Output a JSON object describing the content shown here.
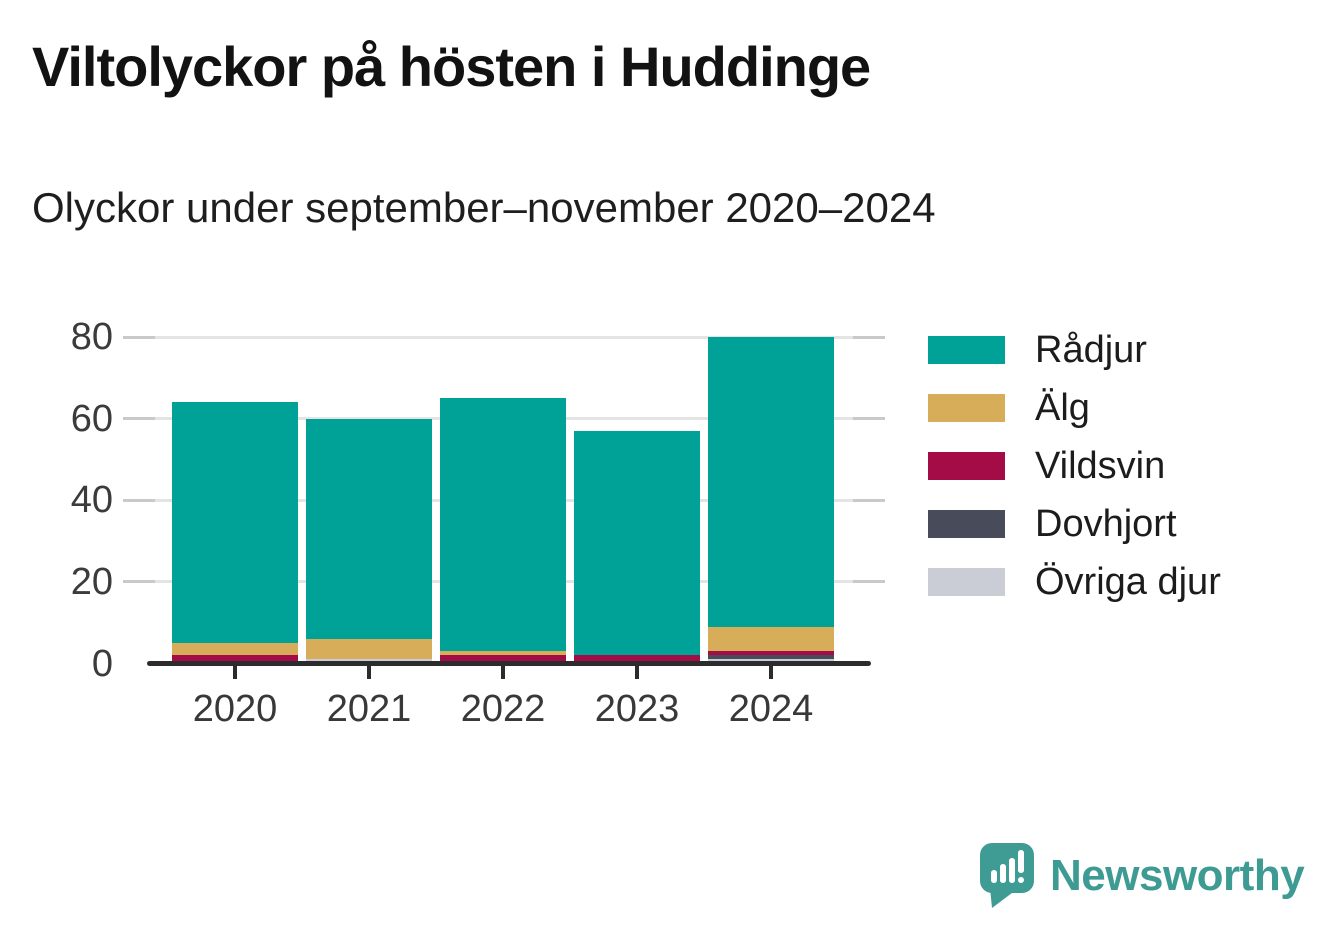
{
  "header": {
    "title": "Viltolyckor på hösten i Huddinge",
    "subtitle": "Olyckor under september–november 2020–2024"
  },
  "chart_data": {
    "type": "bar",
    "stacked": true,
    "title": "Viltolyckor på hösten i Huddinge",
    "subtitle": "Olyckor under september–november 2020–2024",
    "categories": [
      "2020",
      "2021",
      "2022",
      "2023",
      "2024"
    ],
    "series": [
      {
        "name": "Rådjur",
        "color": "#00a298",
        "values": [
          59,
          54,
          62,
          55,
          71
        ]
      },
      {
        "name": "Älg",
        "color": "#d8ad5a",
        "values": [
          3,
          5,
          1,
          0,
          6
        ]
      },
      {
        "name": "Vildsvin",
        "color": "#a40c48",
        "values": [
          2,
          0,
          2,
          2,
          1
        ]
      },
      {
        "name": "Dovhjort",
        "color": "#484b59",
        "values": [
          0,
          0,
          0,
          0,
          1
        ]
      },
      {
        "name": "Övriga djur",
        "color": "#cacdd6",
        "values": [
          0,
          1,
          0,
          0,
          1
        ]
      }
    ],
    "totals": [
      64,
      60,
      65,
      57,
      80
    ],
    "stack_order_bottom_to_top": [
      "Övriga djur",
      "Dovhjort",
      "Vildsvin",
      "Älg",
      "Rådjur"
    ],
    "xlabel": "",
    "ylabel": "",
    "ylim": [
      0,
      80
    ],
    "yticks": [
      0,
      20,
      40,
      60,
      80
    ],
    "grid": "horizontal",
    "legend_position": "right"
  },
  "legend": {
    "labels": [
      "Rådjur",
      "Älg",
      "Vildsvin",
      "Dovhjort",
      "Övriga djur"
    ]
  },
  "branding": {
    "name": "Newsworthy",
    "color": "#3e9b94",
    "icon": "speech-bubble-bar-chart-icon"
  }
}
